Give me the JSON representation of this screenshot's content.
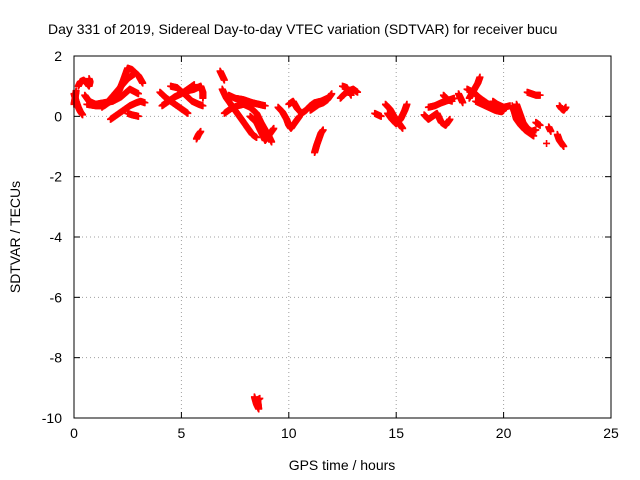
{
  "colors": {
    "series": "#ff0000",
    "grid": "#a0a0a0",
    "axis": "#000000"
  },
  "chart_data": {
    "type": "scatter",
    "title": "Day 331 of 2019, Sidereal Day-to-day VTEC variation (SDTVAR) for receiver bucu",
    "xlabel": "GPS time / hours",
    "ylabel": "SDTVAR / TECUs",
    "xlim": [
      0,
      25
    ],
    "ylim": [
      -10,
      2
    ],
    "xticks": [
      0,
      5,
      10,
      15,
      20,
      25
    ],
    "yticks": [
      -10,
      -8,
      -6,
      -4,
      -2,
      0,
      2
    ],
    "grid": true,
    "marker": "+",
    "series": [
      {
        "name": "SDTVAR",
        "segments": [
          [
            [
              0.0,
              0.75
            ],
            [
              0.1,
              0.5
            ],
            [
              0.2,
              0.3
            ],
            [
              0.3,
              0.15
            ],
            [
              0.4,
              0.05
            ]
          ],
          [
            [
              0.0,
              0.4
            ],
            [
              0.05,
              0.6
            ],
            [
              0.1,
              0.85
            ]
          ],
          [
            [
              0.2,
              1.0
            ],
            [
              0.3,
              1.15
            ],
            [
              0.45,
              1.2
            ],
            [
              0.6,
              1.1
            ],
            [
              0.7,
              1.0
            ],
            [
              0.75,
              1.15
            ],
            [
              0.7,
              1.25
            ]
          ],
          [
            [
              0.5,
              0.7
            ],
            [
              0.7,
              0.5
            ],
            [
              1.0,
              0.4
            ],
            [
              1.4,
              0.45
            ],
            [
              1.8,
              0.5
            ],
            [
              2.2,
              0.65
            ],
            [
              2.6,
              0.9
            ],
            [
              3.0,
              0.75
            ]
          ],
          [
            [
              0.6,
              0.4
            ],
            [
              1.0,
              0.35
            ],
            [
              1.4,
              0.35
            ],
            [
              1.8,
              0.55
            ],
            [
              2.1,
              0.85
            ],
            [
              2.3,
              1.2
            ],
            [
              2.5,
              1.6
            ],
            [
              2.7,
              1.55
            ],
            [
              3.0,
              1.35
            ],
            [
              3.2,
              1.1
            ]
          ],
          [
            [
              1.3,
              0.3
            ],
            [
              1.6,
              0.5
            ],
            [
              1.9,
              0.75
            ],
            [
              2.2,
              1.0
            ],
            [
              2.5,
              1.25
            ],
            [
              2.8,
              1.4
            ]
          ],
          [
            [
              1.7,
              -0.1
            ],
            [
              2.0,
              0.05
            ],
            [
              2.3,
              0.2
            ],
            [
              2.6,
              0.35
            ],
            [
              2.9,
              0.45
            ],
            [
              3.1,
              0.5
            ],
            [
              3.3,
              0.45
            ]
          ],
          [
            [
              2.5,
              0.1
            ],
            [
              2.7,
              0.05
            ],
            [
              3.0,
              0.0
            ]
          ],
          [
            [
              4.0,
              0.8
            ],
            [
              4.3,
              0.6
            ],
            [
              4.6,
              0.45
            ],
            [
              4.9,
              0.3
            ],
            [
              5.1,
              0.2
            ],
            [
              5.3,
              0.1
            ]
          ],
          [
            [
              4.1,
              0.35
            ],
            [
              4.4,
              0.5
            ],
            [
              4.7,
              0.65
            ],
            [
              5.0,
              0.75
            ],
            [
              5.3,
              0.9
            ],
            [
              5.6,
              1.05
            ]
          ],
          [
            [
              4.5,
              1.0
            ],
            [
              4.8,
              0.95
            ],
            [
              5.2,
              0.7
            ],
            [
              5.5,
              0.5
            ],
            [
              5.8,
              0.4
            ],
            [
              6.0,
              0.35
            ]
          ],
          [
            [
              5.3,
              0.85
            ],
            [
              5.6,
              0.9
            ],
            [
              5.9,
              1.0
            ],
            [
              6.0,
              0.8
            ],
            [
              6.0,
              0.6
            ]
          ],
          [
            [
              5.9,
              -0.5
            ],
            [
              5.8,
              -0.6
            ],
            [
              5.7,
              -0.75
            ]
          ],
          [
            [
              6.8,
              1.5
            ],
            [
              6.9,
              1.35
            ],
            [
              7.0,
              1.2
            ]
          ],
          [
            [
              6.9,
              0.9
            ],
            [
              7.1,
              0.6
            ],
            [
              7.3,
              0.4
            ],
            [
              7.5,
              0.2
            ],
            [
              7.7,
              0.0
            ],
            [
              7.9,
              -0.2
            ],
            [
              8.1,
              -0.4
            ],
            [
              8.3,
              -0.6
            ],
            [
              8.5,
              -0.7
            ]
          ],
          [
            [
              7.0,
              0.1
            ],
            [
              7.3,
              0.25
            ],
            [
              7.6,
              0.35
            ],
            [
              7.9,
              0.4
            ],
            [
              8.2,
              0.3
            ],
            [
              8.5,
              0.1
            ],
            [
              8.7,
              -0.2
            ],
            [
              8.9,
              -0.45
            ],
            [
              9.1,
              -0.7
            ],
            [
              9.2,
              -0.85
            ]
          ],
          [
            [
              7.2,
              0.7
            ],
            [
              7.5,
              0.6
            ],
            [
              7.9,
              0.55
            ],
            [
              8.3,
              0.45
            ],
            [
              8.6,
              0.4
            ],
            [
              8.9,
              0.35
            ]
          ],
          [
            [
              8.2,
              0.0
            ],
            [
              8.5,
              -0.2
            ],
            [
              8.7,
              -0.5
            ],
            [
              8.9,
              -0.8
            ],
            [
              9.1,
              -0.6
            ],
            [
              9.3,
              -0.4
            ]
          ],
          [
            [
              8.4,
              -9.3
            ],
            [
              8.5,
              -9.55
            ],
            [
              8.6,
              -9.7
            ],
            [
              8.55,
              -9.4
            ],
            [
              8.65,
              -9.35
            ]
          ],
          [
            [
              9.5,
              0.3
            ],
            [
              9.7,
              0.15
            ],
            [
              9.9,
              -0.1
            ],
            [
              10.0,
              -0.3
            ],
            [
              10.1,
              -0.4
            ],
            [
              10.3,
              -0.2
            ],
            [
              10.5,
              0.0
            ]
          ],
          [
            [
              10.0,
              0.4
            ],
            [
              10.2,
              0.5
            ],
            [
              10.4,
              0.25
            ],
            [
              10.6,
              0.1
            ],
            [
              10.8,
              0.2
            ],
            [
              11.0,
              0.35
            ],
            [
              11.2,
              0.45
            ],
            [
              11.5,
              0.5
            ],
            [
              11.8,
              0.6
            ]
          ],
          [
            [
              11.0,
              0.2
            ],
            [
              11.2,
              0.3
            ],
            [
              11.4,
              0.4
            ],
            [
              11.6,
              0.45
            ],
            [
              11.8,
              0.55
            ],
            [
              12.0,
              0.75
            ]
          ],
          [
            [
              11.2,
              -1.2
            ],
            [
              11.3,
              -0.95
            ],
            [
              11.4,
              -0.75
            ],
            [
              11.5,
              -0.55
            ],
            [
              11.6,
              -0.45
            ]
          ],
          [
            [
              12.4,
              0.6
            ],
            [
              12.6,
              0.75
            ],
            [
              12.8,
              0.85
            ],
            [
              13.0,
              0.9
            ],
            [
              13.2,
              0.8
            ]
          ],
          [
            [
              12.5,
              1.0
            ],
            [
              12.7,
              0.95
            ],
            [
              12.9,
              0.7
            ]
          ],
          [
            [
              14.0,
              0.1
            ],
            [
              14.3,
              0.0
            ]
          ],
          [
            [
              14.5,
              0.4
            ],
            [
              14.7,
              0.25
            ],
            [
              14.9,
              0.0
            ],
            [
              15.1,
              -0.2
            ],
            [
              15.3,
              -0.4
            ]
          ],
          [
            [
              14.6,
              0.1
            ],
            [
              14.8,
              -0.1
            ],
            [
              15.0,
              -0.25
            ],
            [
              15.2,
              -0.1
            ],
            [
              15.4,
              0.2
            ],
            [
              15.5,
              0.4
            ]
          ],
          [
            [
              16.3,
              0.05
            ],
            [
              16.5,
              -0.1
            ],
            [
              16.7,
              0.0
            ],
            [
              16.9,
              0.1
            ],
            [
              17.1,
              -0.2
            ],
            [
              17.3,
              -0.3
            ],
            [
              17.5,
              -0.1
            ]
          ],
          [
            [
              16.5,
              0.3
            ],
            [
              16.8,
              0.35
            ],
            [
              17.1,
              0.45
            ],
            [
              17.3,
              0.5
            ],
            [
              17.5,
              0.55
            ],
            [
              17.7,
              0.6
            ]
          ],
          [
            [
              17.2,
              0.7
            ],
            [
              17.4,
              0.55
            ],
            [
              17.6,
              0.5
            ]
          ],
          [
            [
              17.9,
              0.75
            ],
            [
              18.0,
              0.6
            ],
            [
              18.1,
              0.45
            ]
          ],
          [
            [
              18.3,
              0.9
            ],
            [
              18.6,
              0.8
            ],
            [
              18.9,
              0.6
            ],
            [
              19.2,
              0.45
            ],
            [
              19.5,
              0.3
            ],
            [
              19.8,
              0.25
            ]
          ],
          [
            [
              18.4,
              0.6
            ],
            [
              18.6,
              0.85
            ],
            [
              18.8,
              1.1
            ],
            [
              18.9,
              1.3
            ]
          ],
          [
            [
              18.7,
              0.5
            ],
            [
              19.0,
              0.4
            ],
            [
              19.3,
              0.3
            ],
            [
              19.6,
              0.2
            ],
            [
              19.9,
              0.15
            ],
            [
              20.0,
              0.2
            ]
          ],
          [
            [
              19.5,
              0.5
            ],
            [
              19.7,
              0.4
            ],
            [
              20.0,
              0.3
            ],
            [
              20.3,
              0.35
            ]
          ],
          [
            [
              20.4,
              0.35
            ],
            [
              20.5,
              0.15
            ],
            [
              20.6,
              -0.1
            ],
            [
              20.8,
              -0.3
            ],
            [
              21.0,
              -0.45
            ],
            [
              21.2,
              -0.55
            ],
            [
              21.4,
              -0.65
            ]
          ],
          [
            [
              20.6,
              0.4
            ],
            [
              20.7,
              0.2
            ],
            [
              20.8,
              0.0
            ],
            [
              20.9,
              -0.2
            ],
            [
              21.1,
              -0.4
            ],
            [
              21.3,
              -0.5
            ],
            [
              21.5,
              -0.45
            ]
          ],
          [
            [
              21.1,
              0.8
            ],
            [
              21.3,
              0.75
            ],
            [
              21.5,
              0.7
            ],
            [
              21.7,
              0.7
            ]
          ],
          [
            [
              21.5,
              -0.2
            ],
            [
              21.7,
              -0.3
            ]
          ],
          [
            [
              22.1,
              -0.35
            ],
            [
              22.2,
              -0.5
            ]
          ],
          [
            [
              22.0,
              -0.9
            ]
          ],
          [
            [
              22.6,
              0.35
            ],
            [
              22.7,
              0.25
            ],
            [
              22.8,
              0.2
            ],
            [
              22.9,
              0.3
            ]
          ],
          [
            [
              22.5,
              -0.6
            ],
            [
              22.6,
              -0.8
            ],
            [
              22.7,
              -0.9
            ],
            [
              22.8,
              -1.0
            ]
          ]
        ]
      }
    ]
  }
}
